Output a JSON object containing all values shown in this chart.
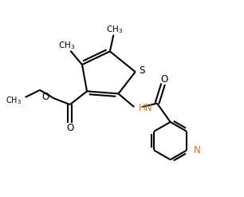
{
  "background_color": "#ffffff",
  "line_color": "#000000",
  "N_color": "#cc7722",
  "bond_width": 1.5,
  "figsize": [
    3.06,
    2.47
  ],
  "dpi": 100,
  "xlim": [
    0,
    10
  ],
  "ylim": [
    0,
    8
  ]
}
